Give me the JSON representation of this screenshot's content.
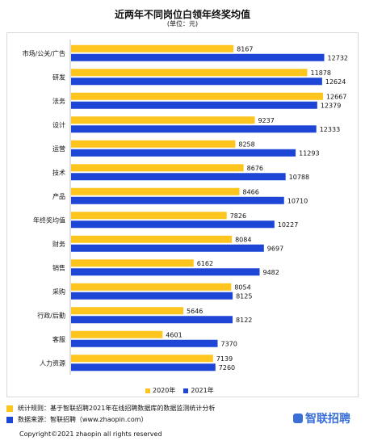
{
  "header": {
    "title": "近两年不同岗位白领年终奖均值",
    "subtitle": "(单位：元)"
  },
  "colors": {
    "series_2020": "#ffc51f",
    "series_2021": "#1e46d6",
    "brand": "#3a6fd8"
  },
  "chart_data": {
    "type": "bar",
    "orientation": "horizontal",
    "categories": [
      "市场/公关/广告",
      "研发",
      "法务",
      "设计",
      "运营",
      "技术",
      "产品",
      "年终奖均值",
      "财务",
      "销售",
      "采购",
      "行政/后勤",
      "客服",
      "人力资源"
    ],
    "series": [
      {
        "name": "2020年",
        "values": [
          8167,
          11878,
          12667,
          9237,
          8258,
          8676,
          8466,
          7826,
          8084,
          6162,
          8054,
          5646,
          4601,
          7139
        ]
      },
      {
        "name": "2021年",
        "values": [
          12732,
          12624,
          12379,
          12333,
          11293,
          10788,
          10710,
          10227,
          9697,
          9482,
          8125,
          8122,
          7370,
          7260
        ]
      }
    ],
    "legend": "bottom-center",
    "data_labels": true,
    "grid": false
  },
  "notes": {
    "rule": "统计规则：基于智联招聘2021年在线招聘数据库的数据监测统计分析",
    "source": "数据来源：智联招聘（www.zhaopin.com）"
  },
  "brand": {
    "logo_text": "智联招聘"
  },
  "footer": {
    "copyright": "Copyright©2021 zhaopin all rights reserved"
  }
}
